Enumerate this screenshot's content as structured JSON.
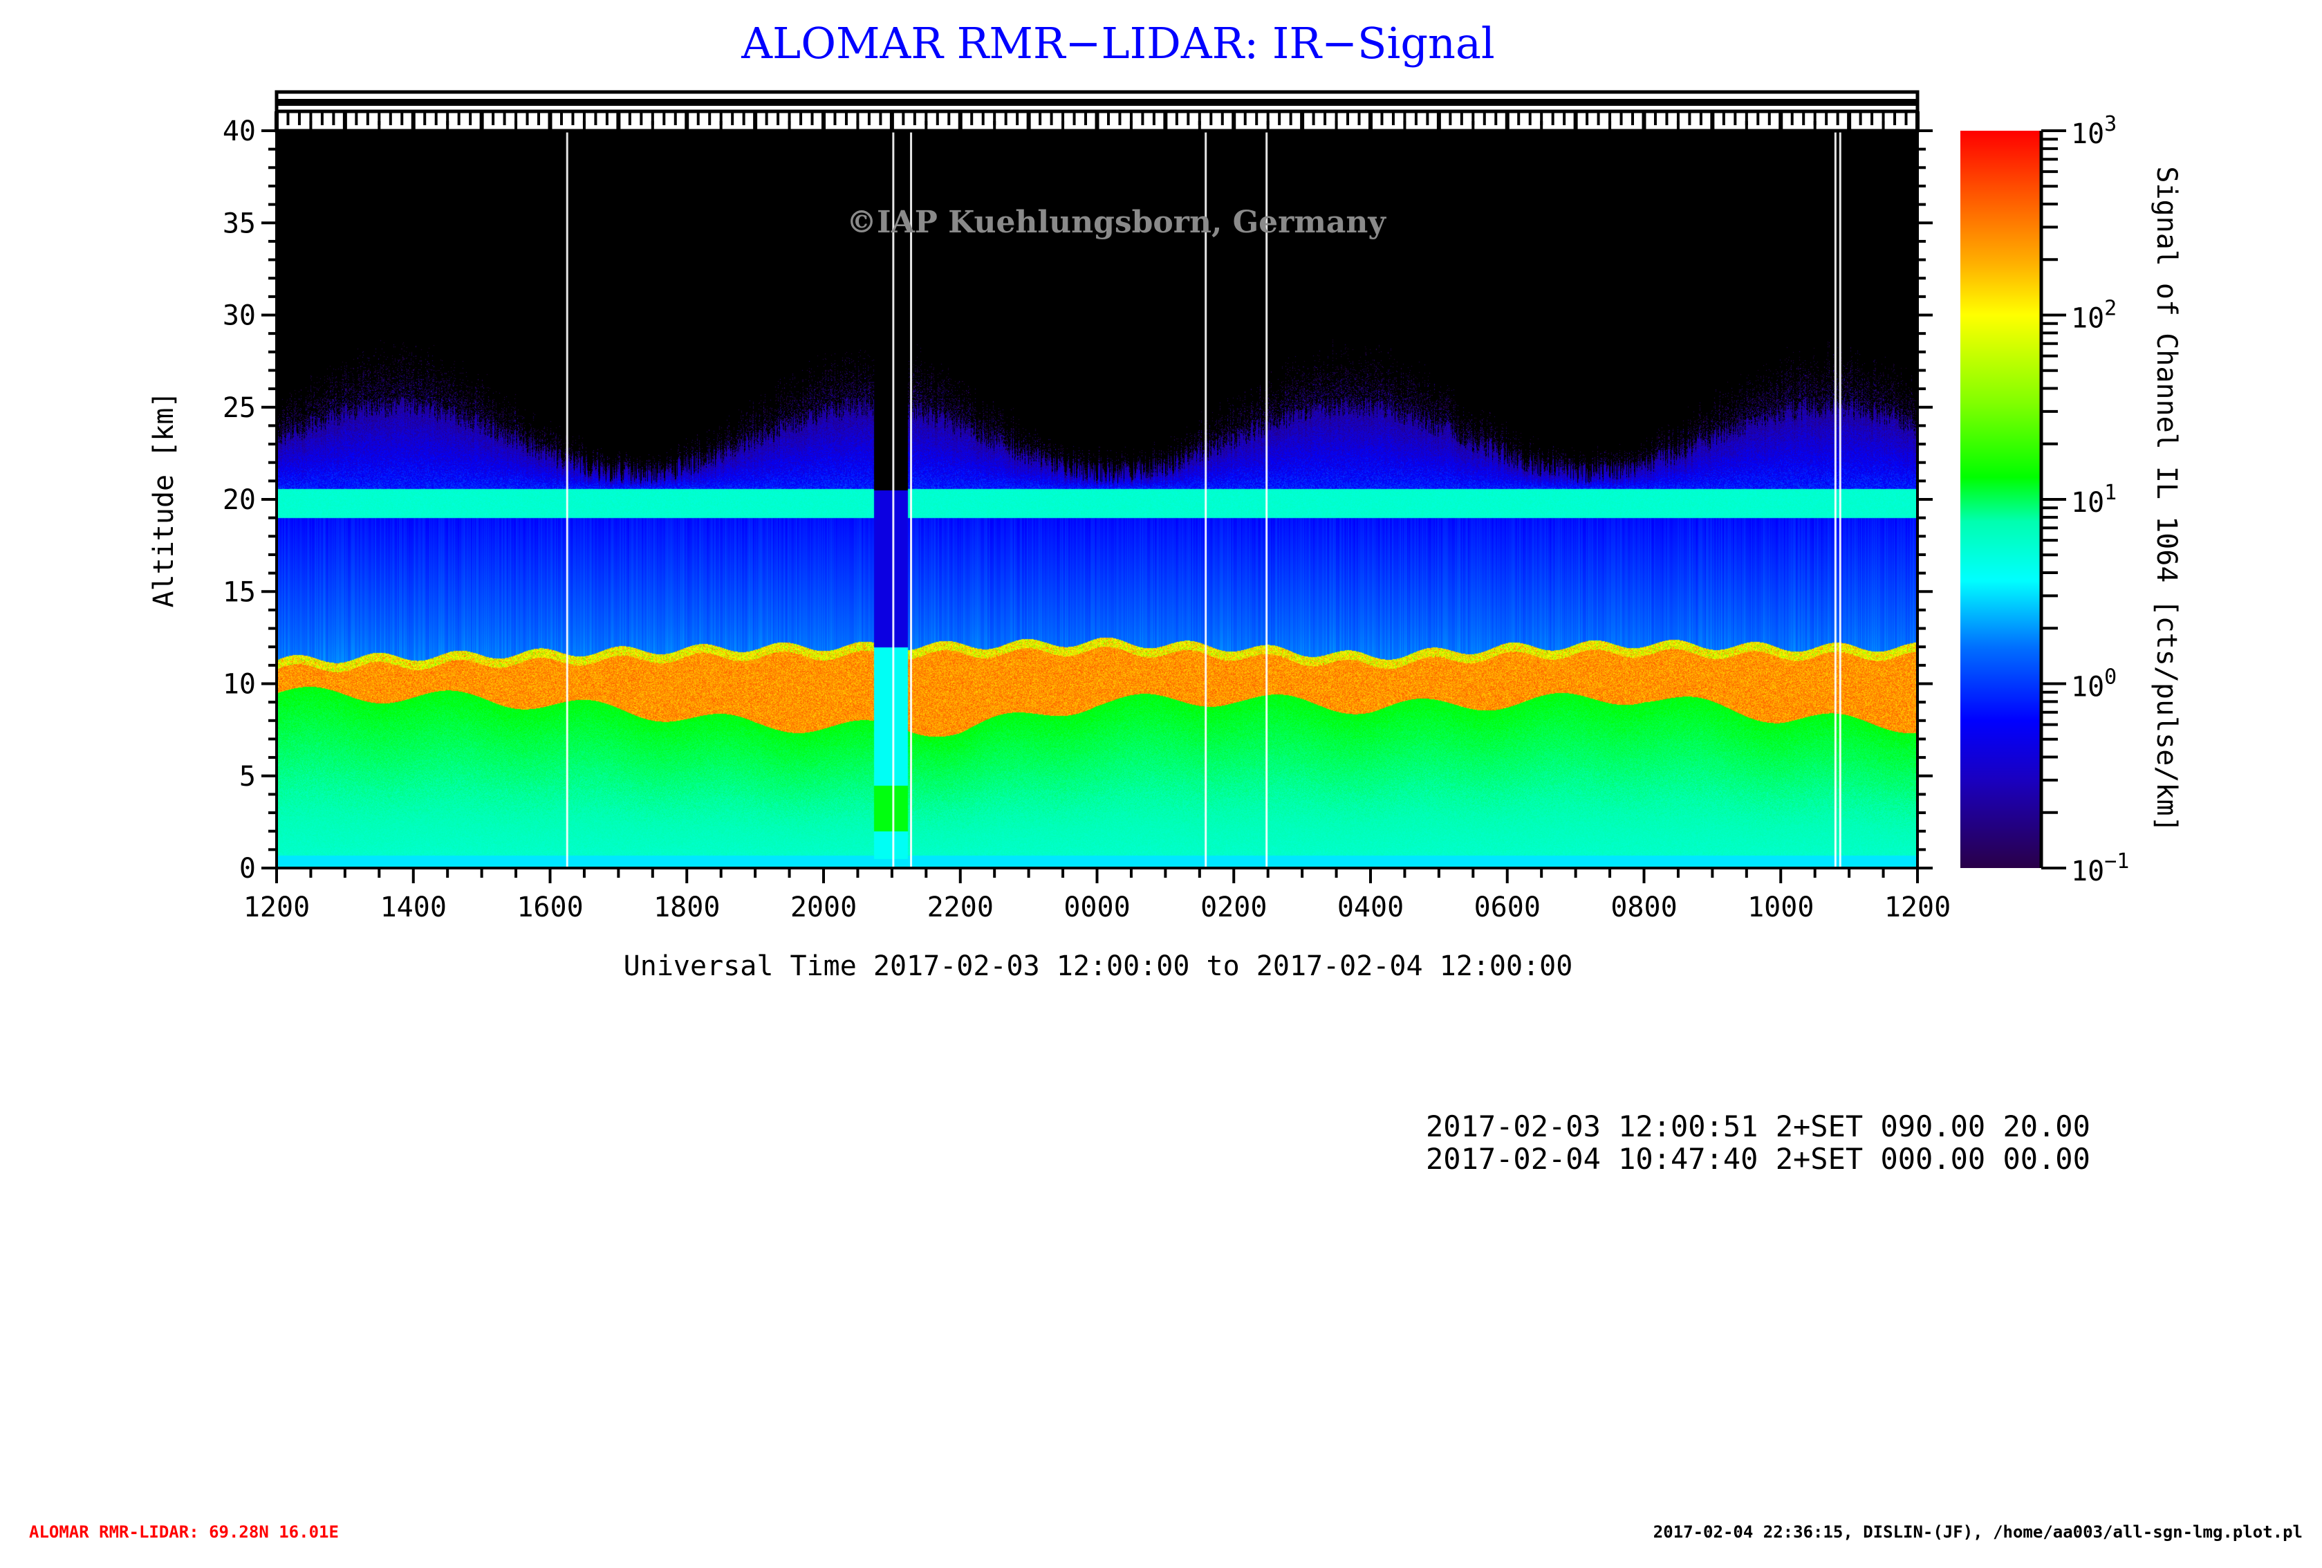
{
  "title": "ALOMAR RMR−LIDAR: IR−Signal",
  "watermark": "©IAP Kuehlungsborn, Germany",
  "chart_data": {
    "type": "heatmap",
    "title": "ALOMAR RMR−LIDAR: IR−Signal",
    "xlabel": "Universal Time 2017-02-03 12:00:00 to 2017-02-04 12:00:00",
    "ylabel": "Altitude [km]",
    "x_range_hours": [
      0,
      24
    ],
    "x_tick_labels": [
      "1200",
      "1400",
      "1600",
      "1800",
      "2000",
      "2200",
      "0000",
      "0200",
      "0400",
      "0600",
      "0800",
      "1000",
      "1200"
    ],
    "ylim": [
      0,
      40
    ],
    "y_ticks": [
      0,
      5,
      10,
      15,
      20,
      25,
      30,
      35,
      40
    ],
    "colorbar": {
      "label": "Signal of Channel IL 1064 [cts/pulse/km]",
      "scale": "log",
      "range": [
        0.1,
        1000
      ],
      "tick_labels": [
        {
          "base": "10",
          "exp": "3"
        },
        {
          "base": "10",
          "exp": "2"
        },
        {
          "base": "10",
          "exp": "1"
        },
        {
          "base": "10",
          "exp": "0"
        },
        {
          "base": "10",
          "exp": "−1"
        }
      ],
      "tick_log_values": [
        3,
        2,
        1,
        0,
        -1
      ]
    },
    "features": {
      "cloud_layer_km": {
        "hours": [
          0,
          3,
          5,
          7,
          10,
          12,
          14,
          16,
          18,
          20,
          22,
          24
        ],
        "base": [
          9.5,
          9.2,
          8.6,
          7.8,
          7.5,
          9.0,
          9.2,
          8.7,
          9.0,
          9.3,
          8.2,
          7.7
        ],
        "top": [
          11.3,
          11.6,
          11.8,
          12.0,
          12.1,
          12.3,
          12.0,
          11.5,
          12.0,
          12.2,
          12.0,
          12.0
        ],
        "signal_log": 2.5
      },
      "boundary_layer_km": [
        0,
        8
      ],
      "stratospheric_band_km": [
        19,
        20.5
      ],
      "noise_top_km": 27,
      "data_gap_hours": [
        4.25,
        9.02,
        9.28,
        13.59,
        14.48,
        22.8,
        22.87
      ],
      "dark_interval_hours": [
        8.73,
        9.23
      ]
    }
  },
  "info_lines": [
    "2017-02-03 12:00:51 2+SET 090.00 20.00",
    "2017-02-04 10:47:40 2+SET 000.00 00.00"
  ],
  "footer_left": "ALOMAR RMR-LIDAR: 69.28N 16.01E",
  "footer_right": "2017-02-04 22:36:15, DISLIN-(JF), /home/aa003/all-sgn-lmg.plot.pl",
  "colors": {
    "title": "#0000ff",
    "footer_left": "#ff0000",
    "watermark": "#8a8a8a"
  }
}
